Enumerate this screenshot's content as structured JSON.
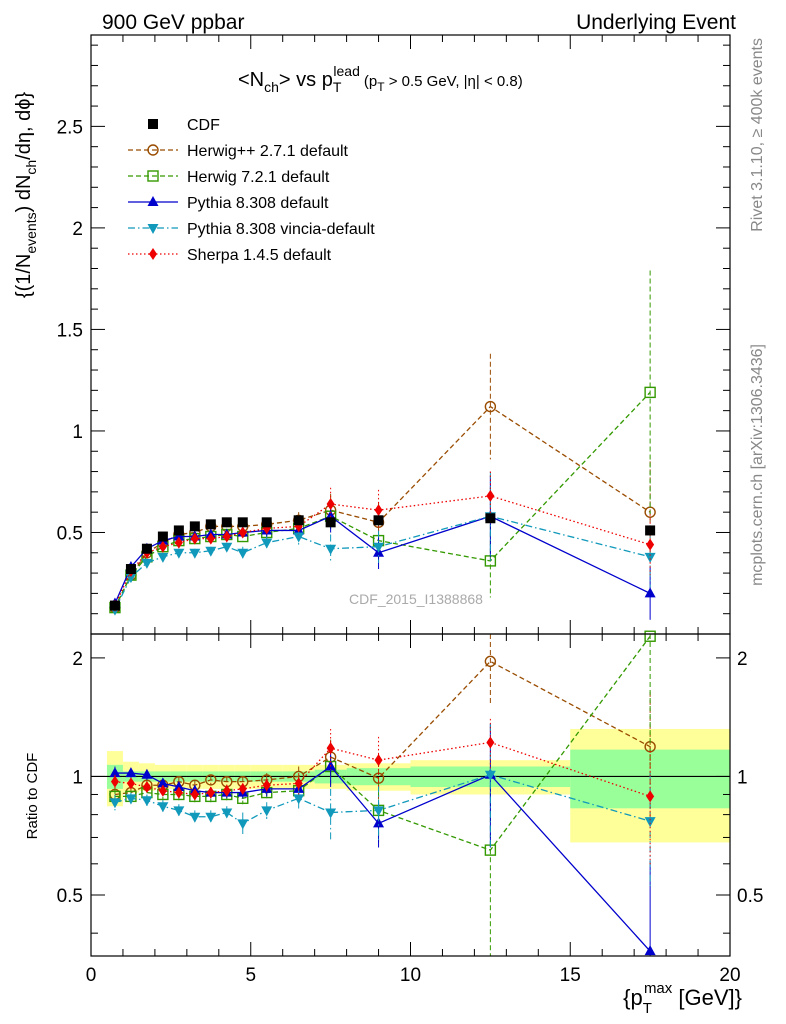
{
  "header": {
    "left": "900 GeV ppbar",
    "right": "Underlying Event"
  },
  "side_labels": {
    "top": "Rivet 3.1.10, ≥ 400k events",
    "bottom": "mcplots.cern.ch [arXiv:1306.3436]"
  },
  "watermark": "CDF_2015_I1388868",
  "main_title": {
    "text": "<N",
    "sub": "ch",
    "mid": "> vs p",
    "sub2": "T",
    "sup2": "lead",
    "cut": "(p",
    "cut_sub": "T",
    "cut_rest": " > 0.5 GeV, |η| < 0.8)"
  },
  "ylabel_main": "{(1/N",
  "ylabel_main_sub": "events",
  "ylabel_main_rest": ") dN",
  "ylabel_main_sub2": "ch",
  "ylabel_main_end": "/dη, dϕ}",
  "ylabel_ratio": "Ratio to CDF",
  "xlabel": "{p",
  "xlabel_sub": "T",
  "xlabel_sup": "max",
  "xlabel_rest": " [GeV]}",
  "legend": [
    {
      "label": "CDF",
      "color": "#000000",
      "marker": "square-filled",
      "line": "none"
    },
    {
      "label": "Herwig++ 2.7.1 default",
      "color": "#994c00",
      "marker": "circle-open",
      "line": "dashed"
    },
    {
      "label": "Herwig 7.2.1 default",
      "color": "#339900",
      "marker": "square-open",
      "line": "dashed"
    },
    {
      "label": "Pythia 8.308 default",
      "color": "#0000cc",
      "marker": "triangle-up",
      "line": "solid"
    },
    {
      "label": "Pythia 8.308 vincia-default",
      "color": "#1199bb",
      "marker": "triangle-down",
      "line": "dashdot"
    },
    {
      "label": "Sherpa 1.4.5 default",
      "color": "#ee0000",
      "marker": "diamond",
      "line": "dotted"
    }
  ],
  "chart_data": [
    {
      "type": "scatter",
      "panel": "main",
      "xlim": [
        0,
        20
      ],
      "ylim": [
        0,
        2.95
      ],
      "yticks": [
        "0.5",
        "1",
        "1.5",
        "2",
        "2.5"
      ],
      "ytick_values": [
        0.5,
        1,
        1.5,
        2,
        2.5
      ],
      "x": [
        0.75,
        1.25,
        1.75,
        2.25,
        2.75,
        3.25,
        3.75,
        4.25,
        4.75,
        5.5,
        6.5,
        7.5,
        9.0,
        12.5,
        17.5
      ],
      "series": [
        {
          "name": "CDF",
          "values": [
            0.14,
            0.32,
            0.42,
            0.48,
            0.51,
            0.53,
            0.54,
            0.55,
            0.55,
            0.55,
            0.56,
            0.55,
            0.56,
            0.57,
            0.51
          ]
        },
        {
          "name": "Herwig++ 2.7.1 default",
          "values": [
            0.13,
            0.29,
            0.4,
            0.45,
            0.49,
            0.5,
            0.53,
            0.53,
            0.53,
            0.54,
            0.56,
            0.61,
            0.55,
            1.12,
            0.6
          ],
          "err": [
            0.02,
            0.02,
            0.02,
            0.02,
            0.02,
            0.02,
            0.02,
            0.02,
            0.02,
            0.03,
            0.04,
            0.08,
            0.1,
            0.26,
            0.25
          ]
        },
        {
          "name": "Herwig 7.2.1 default",
          "values": [
            0.13,
            0.29,
            0.38,
            0.43,
            0.46,
            0.47,
            0.48,
            0.49,
            0.48,
            0.5,
            0.52,
            0.58,
            0.46,
            0.36,
            1.19
          ],
          "err": [
            0.02,
            0.02,
            0.02,
            0.02,
            0.02,
            0.02,
            0.02,
            0.02,
            0.02,
            0.03,
            0.04,
            0.08,
            0.09,
            0.18,
            0.6
          ]
        },
        {
          "name": "Pythia 8.308 default",
          "values": [
            0.15,
            0.33,
            0.42,
            0.46,
            0.48,
            0.48,
            0.49,
            0.49,
            0.5,
            0.51,
            0.51,
            0.58,
            0.4,
            0.58,
            0.2
          ],
          "err": [
            0.02,
            0.02,
            0.02,
            0.02,
            0.02,
            0.02,
            0.02,
            0.02,
            0.02,
            0.03,
            0.04,
            0.08,
            0.08,
            0.2,
            0.13
          ]
        },
        {
          "name": "Pythia 8.308 vincia-default",
          "values": [
            0.12,
            0.28,
            0.35,
            0.38,
            0.4,
            0.4,
            0.41,
            0.43,
            0.4,
            0.45,
            0.48,
            0.42,
            0.43,
            0.58,
            0.38
          ],
          "err": [
            0.02,
            0.02,
            0.02,
            0.02,
            0.02,
            0.02,
            0.02,
            0.02,
            0.03,
            0.03,
            0.04,
            0.07,
            0.08,
            0.22,
            0.15
          ]
        },
        {
          "name": "Sherpa 1.4.5 default",
          "values": [
            0.14,
            0.31,
            0.4,
            0.43,
            0.45,
            0.47,
            0.47,
            0.48,
            0.5,
            0.52,
            0.53,
            0.64,
            0.61,
            0.68,
            0.44
          ],
          "err": [
            0.02,
            0.02,
            0.02,
            0.02,
            0.02,
            0.02,
            0.02,
            0.02,
            0.02,
            0.03,
            0.04,
            0.08,
            0.1,
            0.12,
            0.15
          ]
        }
      ]
    },
    {
      "type": "line",
      "panel": "ratio",
      "xlim": [
        0,
        20
      ],
      "ylim": [
        0.35,
        2.3
      ],
      "yscale": "log",
      "yticks": [
        "0.5",
        "1",
        "2"
      ],
      "ytick_values": [
        0.5,
        1,
        2
      ],
      "xticks": [
        "0",
        "5",
        "10",
        "15",
        "20"
      ],
      "xtick_values": [
        0,
        5,
        10,
        15,
        20
      ],
      "x": [
        0.75,
        1.25,
        1.75,
        2.25,
        2.75,
        3.25,
        3.75,
        4.25,
        4.75,
        5.5,
        6.5,
        7.5,
        9.0,
        12.5,
        17.5
      ],
      "cdf_band": {
        "bins": [
          [
            0.5,
            1.0
          ],
          [
            1.0,
            1.5
          ],
          [
            1.5,
            2.0
          ],
          [
            2.0,
            2.5
          ],
          [
            2.5,
            3.0
          ],
          [
            3.0,
            3.5
          ],
          [
            3.5,
            4.0
          ],
          [
            4.0,
            4.5
          ],
          [
            4.5,
            5.0
          ],
          [
            5.0,
            6.0
          ],
          [
            6.0,
            7.0
          ],
          [
            7.0,
            8.0
          ],
          [
            8.0,
            10.0
          ],
          [
            10.0,
            15.0
          ],
          [
            15.0,
            20.0
          ]
        ],
        "stat": [
          0.07,
          0.03,
          0.03,
          0.03,
          0.03,
          0.03,
          0.03,
          0.03,
          0.03,
          0.03,
          0.03,
          0.04,
          0.05,
          0.06,
          0.17
        ],
        "total": [
          0.16,
          0.09,
          0.08,
          0.07,
          0.07,
          0.07,
          0.07,
          0.07,
          0.07,
          0.07,
          0.07,
          0.07,
          0.08,
          0.1,
          0.32
        ]
      },
      "series": [
        {
          "name": "Herwig++ 2.7.1 default",
          "values": [
            0.9,
            0.91,
            0.95,
            0.95,
            0.97,
            0.95,
            0.98,
            0.97,
            0.97,
            0.98,
            1.0,
            1.12,
            0.99,
            1.96,
            1.19
          ],
          "err": [
            0.04,
            0.03,
            0.03,
            0.03,
            0.03,
            0.03,
            0.03,
            0.03,
            0.03,
            0.04,
            0.06,
            0.12,
            0.15,
            0.45,
            0.45
          ]
        },
        {
          "name": "Herwig 7.2.1 default",
          "values": [
            0.89,
            0.89,
            0.91,
            0.9,
            0.9,
            0.89,
            0.89,
            0.9,
            0.88,
            0.91,
            0.92,
            1.06,
            0.82,
            0.65,
            2.27
          ],
          "err": [
            0.04,
            0.03,
            0.03,
            0.03,
            0.03,
            0.03,
            0.03,
            0.03,
            0.03,
            0.04,
            0.06,
            0.12,
            0.14,
            0.3,
            1.2
          ]
        },
        {
          "name": "Pythia 8.308 default",
          "values": [
            1.02,
            1.02,
            1.01,
            0.96,
            0.94,
            0.92,
            0.91,
            0.91,
            0.91,
            0.93,
            0.93,
            1.06,
            0.76,
            1.01,
            0.36
          ],
          "err": [
            0.04,
            0.03,
            0.03,
            0.03,
            0.03,
            0.03,
            0.03,
            0.03,
            0.03,
            0.04,
            0.06,
            0.12,
            0.1,
            0.35,
            0.25
          ]
        },
        {
          "name": "Pythia 8.308 vincia-default",
          "values": [
            0.86,
            0.88,
            0.87,
            0.84,
            0.82,
            0.79,
            0.79,
            0.81,
            0.76,
            0.82,
            0.88,
            0.81,
            0.82,
            1.01,
            0.77
          ],
          "err": [
            0.04,
            0.03,
            0.03,
            0.03,
            0.03,
            0.03,
            0.03,
            0.03,
            0.05,
            0.04,
            0.06,
            0.12,
            0.13,
            0.35,
            0.25
          ]
        },
        {
          "name": "Sherpa 1.4.5 default",
          "values": [
            0.97,
            0.96,
            0.94,
            0.92,
            0.91,
            0.9,
            0.91,
            0.92,
            0.93,
            0.95,
            0.96,
            1.18,
            1.1,
            1.22,
            0.89
          ],
          "err": [
            0.04,
            0.03,
            0.03,
            0.03,
            0.03,
            0.03,
            0.03,
            0.03,
            0.03,
            0.04,
            0.06,
            0.14,
            0.16,
            0.18,
            0.3
          ]
        }
      ]
    }
  ]
}
